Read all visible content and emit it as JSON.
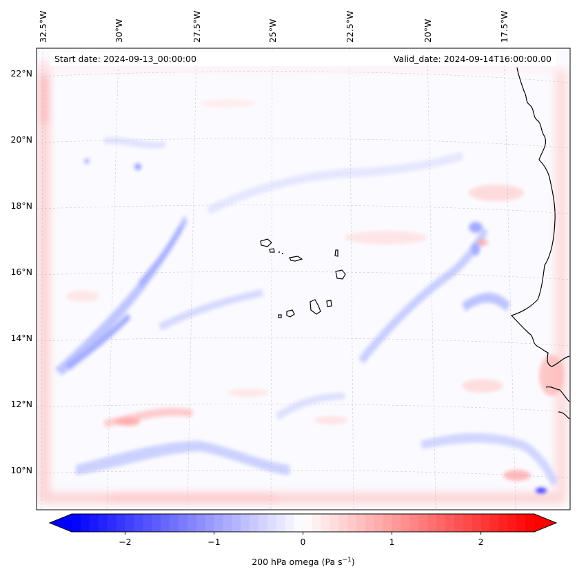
{
  "map": {
    "start_date": "Start date: 2024-09-13_00:00:00",
    "valid_date": "Valid_date: 2024-09-14T16:00:00.00",
    "lon_labels": [
      "32.5°W",
      "30°W",
      "27.5°W",
      "25°W",
      "22.5°W",
      "20°W",
      "17.5°W"
    ],
    "lat_labels": [
      "22°N",
      "20°N",
      "18°N",
      "16°N",
      "14°N",
      "12°N",
      "10°N"
    ],
    "field_colors": {
      "negative": "#0000ff",
      "neutral": "#ffffff",
      "positive": "#ff0000"
    }
  },
  "colorbar": {
    "label": "200 hPa omega (Pa s",
    "label_sup": "−1",
    "label_end": ")",
    "range": [
      -2.6,
      2.6
    ],
    "ticks": [
      "−2",
      "−1",
      "0",
      "1",
      "2"
    ],
    "tick_values": [
      -2,
      -1,
      0,
      1,
      2
    ]
  }
}
